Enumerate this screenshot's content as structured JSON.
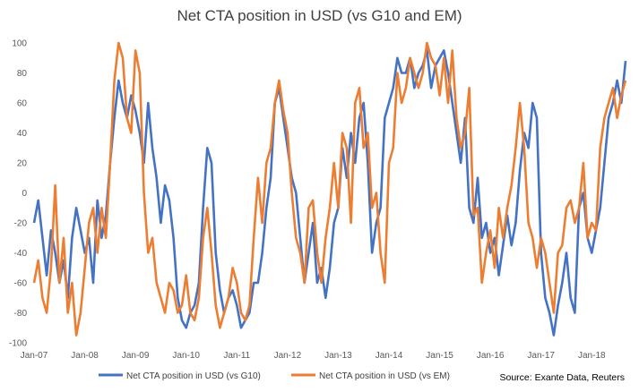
{
  "chart_data": {
    "type": "line",
    "title": "Net CTA position in USD (vs G10 and EM)",
    "xlabel": "",
    "ylabel": "",
    "ylim": [
      -100,
      100
    ],
    "yticks": [
      100,
      80,
      60,
      40,
      20,
      0,
      -20,
      -40,
      -60,
      -80,
      -100
    ],
    "xticks": [
      "Jan-07",
      "Jan-08",
      "Jan-09",
      "Jan-10",
      "Jan-11",
      "Jan-12",
      "Jan-13",
      "Jan-14",
      "Jan-15",
      "Jan-16",
      "Jan-17",
      "Jan-18"
    ],
    "xlim": [
      "2007-01",
      "2018-09"
    ],
    "grid": false,
    "legend_position": "bottom",
    "source": "Source: Exante Data, Reuters",
    "colors": {
      "g10": "#4472C4",
      "em": "#ED7D31"
    },
    "series": [
      {
        "name": "Net CTA position in USD (vs G10)",
        "color": "#4472C4",
        "x": [
          "2007-01",
          "2007-02",
          "2007-03",
          "2007-04",
          "2007-05",
          "2007-06",
          "2007-07",
          "2007-08",
          "2007-09",
          "2007-10",
          "2007-11",
          "2007-12",
          "2008-01",
          "2008-02",
          "2008-03",
          "2008-04",
          "2008-05",
          "2008-06",
          "2008-07",
          "2008-08",
          "2008-09",
          "2008-10",
          "2008-11",
          "2008-12",
          "2009-01",
          "2009-02",
          "2009-03",
          "2009-04",
          "2009-05",
          "2009-06",
          "2009-07",
          "2009-08",
          "2009-09",
          "2009-10",
          "2009-11",
          "2009-12",
          "2010-01",
          "2010-02",
          "2010-03",
          "2010-04",
          "2010-05",
          "2010-06",
          "2010-07",
          "2010-08",
          "2010-09",
          "2010-10",
          "2010-11",
          "2010-12",
          "2011-01",
          "2011-02",
          "2011-03",
          "2011-04",
          "2011-05",
          "2011-06",
          "2011-07",
          "2011-08",
          "2011-09",
          "2011-10",
          "2011-11",
          "2011-12",
          "2012-01",
          "2012-02",
          "2012-03",
          "2012-04",
          "2012-05",
          "2012-06",
          "2012-07",
          "2012-08",
          "2012-09",
          "2012-10",
          "2012-11",
          "2012-12",
          "2013-01",
          "2013-02",
          "2013-03",
          "2013-04",
          "2013-05",
          "2013-06",
          "2013-07",
          "2013-08",
          "2013-09",
          "2013-10",
          "2013-11",
          "2013-12",
          "2014-01",
          "2014-02",
          "2014-03",
          "2014-04",
          "2014-05",
          "2014-06",
          "2014-07",
          "2014-08",
          "2014-09",
          "2014-10",
          "2014-11",
          "2014-12",
          "2015-01",
          "2015-02",
          "2015-03",
          "2015-04",
          "2015-05",
          "2015-06",
          "2015-07",
          "2015-08",
          "2015-09",
          "2015-10",
          "2015-11",
          "2015-12",
          "2016-01",
          "2016-02",
          "2016-03",
          "2016-04",
          "2016-05",
          "2016-06",
          "2016-07",
          "2016-08",
          "2016-09",
          "2016-10",
          "2016-11",
          "2016-12",
          "2017-01",
          "2017-02",
          "2017-03",
          "2017-04",
          "2017-05",
          "2017-06",
          "2017-07",
          "2017-08",
          "2017-09",
          "2017-10",
          "2017-11",
          "2017-12",
          "2018-01",
          "2018-02",
          "2018-03",
          "2018-04",
          "2018-05",
          "2018-06",
          "2018-07",
          "2018-08",
          "2018-09"
        ],
        "values": [
          -20,
          -5,
          -30,
          -55,
          -25,
          -40,
          -60,
          -45,
          -70,
          -30,
          -10,
          -25,
          -40,
          -30,
          -60,
          -5,
          -30,
          -15,
          20,
          50,
          75,
          60,
          50,
          65,
          55,
          40,
          20,
          60,
          30,
          10,
          -20,
          5,
          -5,
          -30,
          -70,
          -85,
          -90,
          -80,
          -75,
          -60,
          -10,
          30,
          20,
          -40,
          -65,
          -80,
          -70,
          -65,
          -75,
          -90,
          -85,
          -80,
          -60,
          -60,
          -40,
          -10,
          10,
          60,
          70,
          50,
          30,
          10,
          0,
          -30,
          -60,
          -40,
          -20,
          -60,
          -50,
          -70,
          -50,
          -20,
          -10,
          30,
          10,
          40,
          20,
          50,
          60,
          20,
          -40,
          -20,
          -10,
          50,
          60,
          70,
          90,
          80,
          80,
          90,
          70,
          80,
          85,
          95,
          70,
          85,
          90,
          95,
          80,
          60,
          40,
          20,
          50,
          -10,
          -20,
          10,
          -30,
          -20,
          -40,
          -30,
          -55,
          -35,
          -15,
          -35,
          -20,
          15,
          40,
          30,
          60,
          50,
          -40,
          -70,
          -80,
          -95,
          -75,
          -60,
          -40,
          -70,
          -80,
          -10,
          0,
          -30,
          -40,
          -25,
          -10,
          20,
          50,
          60,
          75,
          60,
          88
        ]
      },
      {
        "name": "Net CTA position in USD (vs EM)",
        "color": "#ED7D31",
        "x": [
          "2007-01",
          "2007-02",
          "2007-03",
          "2007-04",
          "2007-05",
          "2007-06",
          "2007-07",
          "2007-08",
          "2007-09",
          "2007-10",
          "2007-11",
          "2007-12",
          "2008-01",
          "2008-02",
          "2008-03",
          "2008-04",
          "2008-05",
          "2008-06",
          "2008-07",
          "2008-08",
          "2008-09",
          "2008-10",
          "2008-11",
          "2008-12",
          "2009-01",
          "2009-02",
          "2009-03",
          "2009-04",
          "2009-05",
          "2009-06",
          "2009-07",
          "2009-08",
          "2009-09",
          "2009-10",
          "2009-11",
          "2009-12",
          "2010-01",
          "2010-02",
          "2010-03",
          "2010-04",
          "2010-05",
          "2010-06",
          "2010-07",
          "2010-08",
          "2010-09",
          "2010-10",
          "2010-11",
          "2010-12",
          "2011-01",
          "2011-02",
          "2011-03",
          "2011-04",
          "2011-05",
          "2011-06",
          "2011-07",
          "2011-08",
          "2011-09",
          "2011-10",
          "2011-11",
          "2011-12",
          "2012-01",
          "2012-02",
          "2012-03",
          "2012-04",
          "2012-05",
          "2012-06",
          "2012-07",
          "2012-08",
          "2012-09",
          "2012-10",
          "2012-11",
          "2012-12",
          "2013-01",
          "2013-02",
          "2013-03",
          "2013-04",
          "2013-05",
          "2013-06",
          "2013-07",
          "2013-08",
          "2013-09",
          "2013-10",
          "2013-11",
          "2013-12",
          "2014-01",
          "2014-02",
          "2014-03",
          "2014-04",
          "2014-05",
          "2014-06",
          "2014-07",
          "2014-08",
          "2014-09",
          "2014-10",
          "2014-11",
          "2014-12",
          "2015-01",
          "2015-02",
          "2015-03",
          "2015-04",
          "2015-05",
          "2015-06",
          "2015-07",
          "2015-08",
          "2015-09",
          "2015-10",
          "2015-11",
          "2015-12",
          "2016-01",
          "2016-02",
          "2016-03",
          "2016-04",
          "2016-05",
          "2016-06",
          "2016-07",
          "2016-08",
          "2016-09",
          "2016-10",
          "2016-11",
          "2016-12",
          "2017-01",
          "2017-02",
          "2017-03",
          "2017-04",
          "2017-05",
          "2017-06",
          "2017-07",
          "2017-08",
          "2017-09",
          "2017-10",
          "2017-11",
          "2017-12",
          "2018-01",
          "2018-02",
          "2018-03",
          "2018-04",
          "2018-05",
          "2018-06",
          "2018-07",
          "2018-08",
          "2018-09"
        ],
        "values": [
          -60,
          -45,
          -70,
          -80,
          -50,
          5,
          -60,
          -30,
          -80,
          -60,
          -95,
          -80,
          -50,
          -20,
          -10,
          -40,
          -10,
          -30,
          20,
          75,
          100,
          90,
          50,
          40,
          95,
          80,
          0,
          -40,
          -30,
          -60,
          -70,
          -80,
          -60,
          -65,
          -80,
          -75,
          -55,
          -80,
          -85,
          -70,
          -30,
          -10,
          -40,
          -75,
          -90,
          -80,
          -70,
          -50,
          -60,
          -80,
          -85,
          -75,
          -30,
          10,
          -20,
          20,
          30,
          60,
          75,
          55,
          40,
          0,
          -30,
          -40,
          -60,
          -10,
          -5,
          -40,
          -60,
          -30,
          -10,
          20,
          -10,
          40,
          30,
          -20,
          60,
          70,
          30,
          40,
          -10,
          0,
          -40,
          -60,
          20,
          30,
          80,
          60,
          70,
          90,
          80,
          70,
          80,
          100,
          90,
          85,
          65,
          90,
          60,
          95,
          50,
          30,
          40,
          70,
          -15,
          -10,
          -60,
          -40,
          -25,
          -50,
          -10,
          -30,
          -10,
          5,
          30,
          60,
          30,
          -20,
          -30,
          -50,
          -30,
          -40,
          -60,
          -80,
          -40,
          -35,
          -10,
          -5,
          -20,
          -10,
          20,
          -30,
          -20,
          -25,
          30,
          50,
          60,
          70,
          50,
          65,
          75
        ]
      }
    ]
  }
}
